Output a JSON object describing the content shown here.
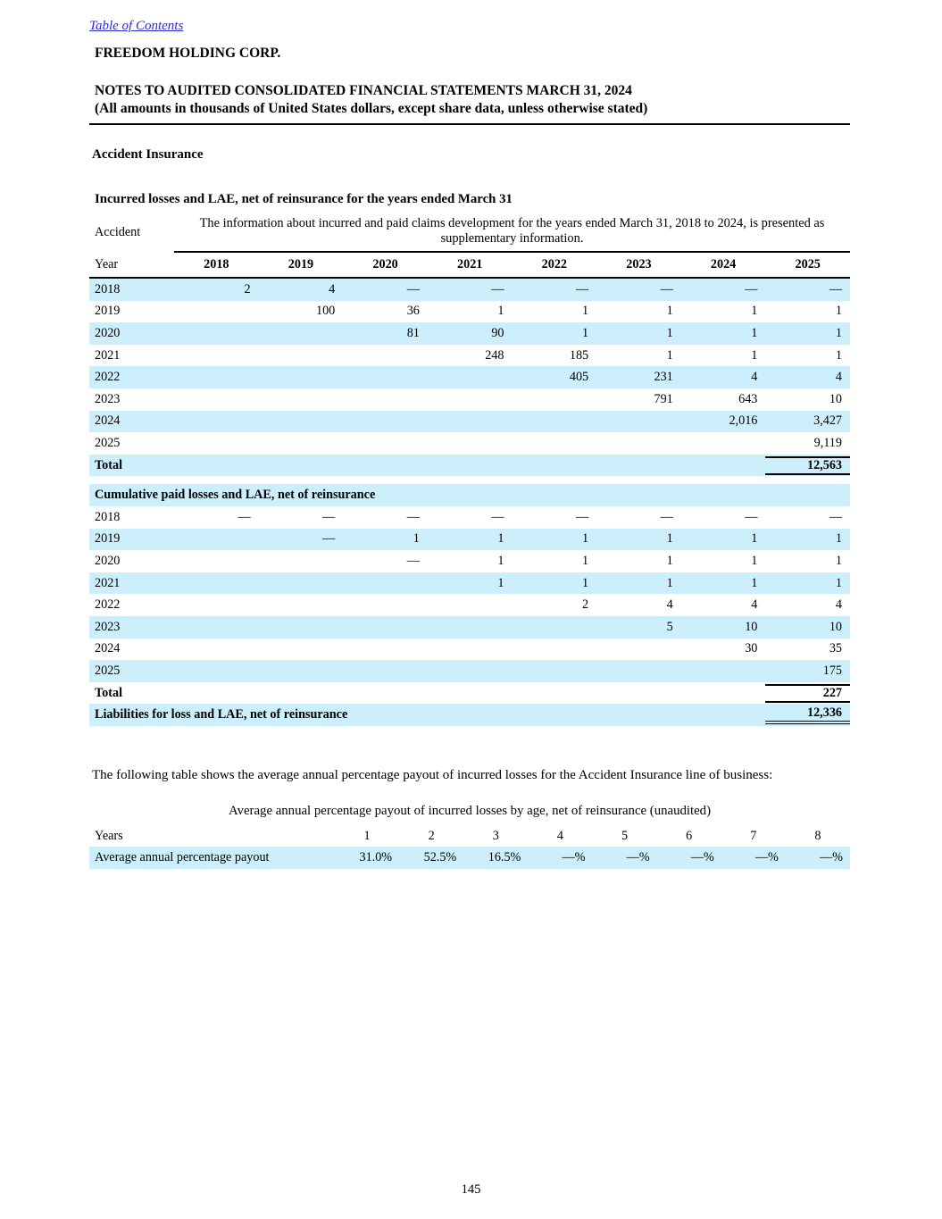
{
  "page": {
    "toc_link": "Table of Contents",
    "company": "FREEDOM HOLDING CORP.",
    "title_line1": "NOTES TO AUDITED CONSOLIDATED FINANCIAL STATEMENTS MARCH 31, 2024",
    "title_line2": "(All amounts in thousands of United States dollars, except share data, unless otherwise stated)",
    "section_heading": "Accident Insurance",
    "page_number": "145"
  },
  "claims_table": {
    "title": "Incurred losses and LAE, net of reinsurance for the years ended March 31",
    "row_label_header": "Accident",
    "spanning_note": "The information about incurred and paid claims development for the years ended March 31, 2018 to 2024, is presented as supplementary information.",
    "year_label": "Year",
    "columns": [
      "2018",
      "2019",
      "2020",
      "2021",
      "2022",
      "2023",
      "2024",
      "2025"
    ],
    "incurred_rows": [
      {
        "label": "2018",
        "values": [
          "2",
          "4",
          "—",
          "—",
          "—",
          "—",
          "—",
          "—"
        ]
      },
      {
        "label": "2019",
        "values": [
          "",
          "100",
          "36",
          "1",
          "1",
          "1",
          "1",
          "1"
        ]
      },
      {
        "label": "2020",
        "values": [
          "",
          "",
          "81",
          "90",
          "1",
          "1",
          "1",
          "1"
        ]
      },
      {
        "label": "2021",
        "values": [
          "",
          "",
          "",
          "248",
          "185",
          "1",
          "1",
          "1"
        ]
      },
      {
        "label": "2022",
        "values": [
          "",
          "",
          "",
          "",
          "405",
          "231",
          "4",
          "4"
        ]
      },
      {
        "label": "2023",
        "values": [
          "",
          "",
          "",
          "",
          "",
          "791",
          "643",
          "10"
        ]
      },
      {
        "label": "2024",
        "values": [
          "",
          "",
          "",
          "",
          "",
          "",
          "2,016",
          "3,427"
        ]
      },
      {
        "label": "2025",
        "values": [
          "",
          "",
          "",
          "",
          "",
          "",
          "",
          "9,119"
        ]
      }
    ],
    "incurred_total": {
      "label": "Total",
      "value": "12,563"
    },
    "paid_section_title": "Cumulative paid losses and LAE, net of reinsurance",
    "paid_rows": [
      {
        "label": "2018",
        "values": [
          "—",
          "—",
          "—",
          "—",
          "—",
          "—",
          "—",
          "—"
        ]
      },
      {
        "label": "2019",
        "values": [
          "",
          "—",
          "1",
          "1",
          "1",
          "1",
          "1",
          "1"
        ]
      },
      {
        "label": "2020",
        "values": [
          "",
          "",
          "—",
          "1",
          "1",
          "1",
          "1",
          "1"
        ]
      },
      {
        "label": "2021",
        "values": [
          "",
          "",
          "",
          "1",
          "1",
          "1",
          "1",
          "1"
        ]
      },
      {
        "label": "2022",
        "values": [
          "",
          "",
          "",
          "",
          "2",
          "4",
          "4",
          "4"
        ]
      },
      {
        "label": "2023",
        "values": [
          "",
          "",
          "",
          "",
          "",
          "5",
          "10",
          "10"
        ]
      },
      {
        "label": "2024",
        "values": [
          "",
          "",
          "",
          "",
          "",
          "",
          "30",
          "35"
        ]
      },
      {
        "label": "2025",
        "values": [
          "",
          "",
          "",
          "",
          "",
          "",
          "",
          "175"
        ]
      }
    ],
    "paid_total": {
      "label": "Total",
      "value": "227"
    },
    "liabilities_row": {
      "label": "Liabilities for loss and LAE, net of reinsurance",
      "value": "12,336"
    }
  },
  "payout_paragraph": "The following table shows the average annual percentage payout of incurred losses for the Accident Insurance line of business:",
  "payout_table": {
    "caption": "Average annual percentage payout of incurred losses by age, net of reinsurance (unaudited)",
    "row_label_header": "Years",
    "columns": [
      "1",
      "2",
      "3",
      "4",
      "5",
      "6",
      "7",
      "8"
    ],
    "row_label": "Average annual percentage payout",
    "values": [
      "31.0%",
      "52.5%",
      "16.5%",
      "—%",
      "—%",
      "—%",
      "—%",
      "—%"
    ]
  },
  "colors": {
    "stripe_blue": "#cdeffc",
    "link_blue": "#2a2ad4"
  }
}
